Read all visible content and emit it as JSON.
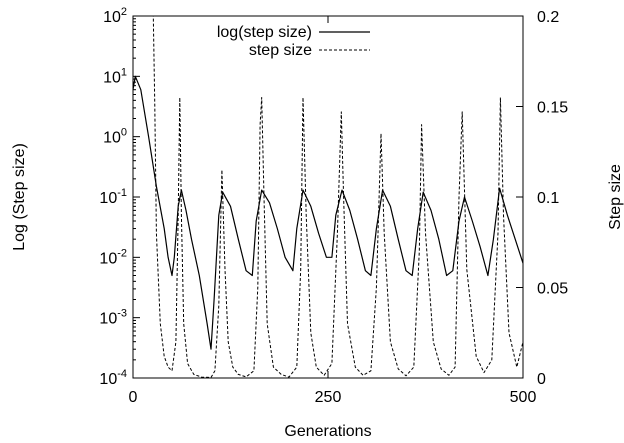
{
  "chart_data": {
    "type": "line",
    "title": "",
    "xlabel": "Generations",
    "ylabel_left": "Log (Step size)",
    "ylabel_right": "Step size",
    "xlim": [
      0,
      500
    ],
    "ylim_left": [
      0.0001,
      100
    ],
    "ylim_right": [
      0,
      0.2
    ],
    "y_left_scale": "log",
    "grid": false,
    "legend_position": "top-center",
    "x_ticks": [
      "0",
      "250",
      "500"
    ],
    "y_left_ticks": [
      {
        "base": "10",
        "exp": "2",
        "value": 100
      },
      {
        "base": "10",
        "exp": "1",
        "value": 10
      },
      {
        "base": "10",
        "exp": "0",
        "value": 1
      },
      {
        "base": "10",
        "exp": "-1",
        "value": 0.1
      },
      {
        "base": "10",
        "exp": "-2",
        "value": 0.01
      },
      {
        "base": "10",
        "exp": "-3",
        "value": 0.001
      },
      {
        "base": "10",
        "exp": "-4",
        "value": 0.0001
      }
    ],
    "y_right_ticks": [
      "0.2",
      "0.15",
      "0.1",
      "0.05",
      "0"
    ],
    "series": [
      {
        "name": "log(step size)",
        "axis": "left",
        "style": "solid",
        "x": [
          0,
          3,
          10,
          20,
          30,
          40,
          45,
          50,
          53,
          58,
          62,
          68,
          75,
          85,
          95,
          100,
          104,
          110,
          115,
          125,
          135,
          145,
          153,
          158,
          165,
          175,
          185,
          195,
          205,
          210,
          218,
          228,
          238,
          248,
          255,
          260,
          268,
          278,
          288,
          298,
          305,
          312,
          320,
          330,
          340,
          350,
          358,
          365,
          372,
          382,
          392,
          402,
          410,
          418,
          425,
          435,
          445,
          455,
          462,
          470,
          480,
          490,
          500
        ],
        "values": [
          6,
          10,
          6,
          1.0,
          0.15,
          0.03,
          0.01,
          0.005,
          0.01,
          0.07,
          0.13,
          0.06,
          0.02,
          0.005,
          0.0008,
          0.0003,
          0.002,
          0.05,
          0.12,
          0.07,
          0.02,
          0.006,
          0.005,
          0.04,
          0.13,
          0.08,
          0.03,
          0.01,
          0.006,
          0.03,
          0.13,
          0.07,
          0.025,
          0.01,
          0.01,
          0.05,
          0.13,
          0.06,
          0.02,
          0.006,
          0.005,
          0.03,
          0.13,
          0.07,
          0.02,
          0.006,
          0.005,
          0.03,
          0.12,
          0.06,
          0.02,
          0.005,
          0.006,
          0.04,
          0.1,
          0.04,
          0.015,
          0.005,
          0.02,
          0.14,
          0.05,
          0.02,
          0.008
        ]
      },
      {
        "name": "step size",
        "axis": "right",
        "style": "dashed",
        "x": [
          23,
          26,
          28,
          30,
          35,
          40,
          45,
          50,
          55,
          58,
          60,
          62,
          65,
          70,
          78,
          88,
          100,
          105,
          110,
          114,
          118,
          122,
          128,
          135,
          145,
          155,
          160,
          163,
          165,
          168,
          172,
          180,
          190,
          200,
          210,
          215,
          218,
          222,
          228,
          235,
          245,
          255,
          262,
          267,
          270,
          275,
          285,
          295,
          305,
          312,
          318,
          322,
          330,
          340,
          350,
          360,
          367,
          370,
          375,
          385,
          395,
          405,
          413,
          418,
          422,
          428,
          440,
          450,
          460,
          468,
          471,
          475,
          482,
          492,
          500
        ],
        "values": [
          0.2,
          0.2,
          0.15,
          0.08,
          0.03,
          0.012,
          0.006,
          0.004,
          0.02,
          0.09,
          0.155,
          0.09,
          0.03,
          0.008,
          0.002,
          0.0005,
          0.0003,
          0.004,
          0.04,
          0.115,
          0.06,
          0.02,
          0.006,
          0.002,
          0.0006,
          0.004,
          0.05,
          0.14,
          0.155,
          0.1,
          0.03,
          0.006,
          0.002,
          0.0005,
          0.006,
          0.06,
          0.155,
          0.09,
          0.025,
          0.006,
          0.0015,
          0.008,
          0.08,
          0.147,
          0.1,
          0.03,
          0.006,
          0.0015,
          0.004,
          0.05,
          0.135,
          0.08,
          0.02,
          0.005,
          0.0012,
          0.006,
          0.07,
          0.14,
          0.08,
          0.02,
          0.005,
          0.0015,
          0.006,
          0.1,
          0.147,
          0.06,
          0.012,
          0.003,
          0.01,
          0.08,
          0.155,
          0.09,
          0.025,
          0.006,
          0.02
        ]
      }
    ]
  }
}
